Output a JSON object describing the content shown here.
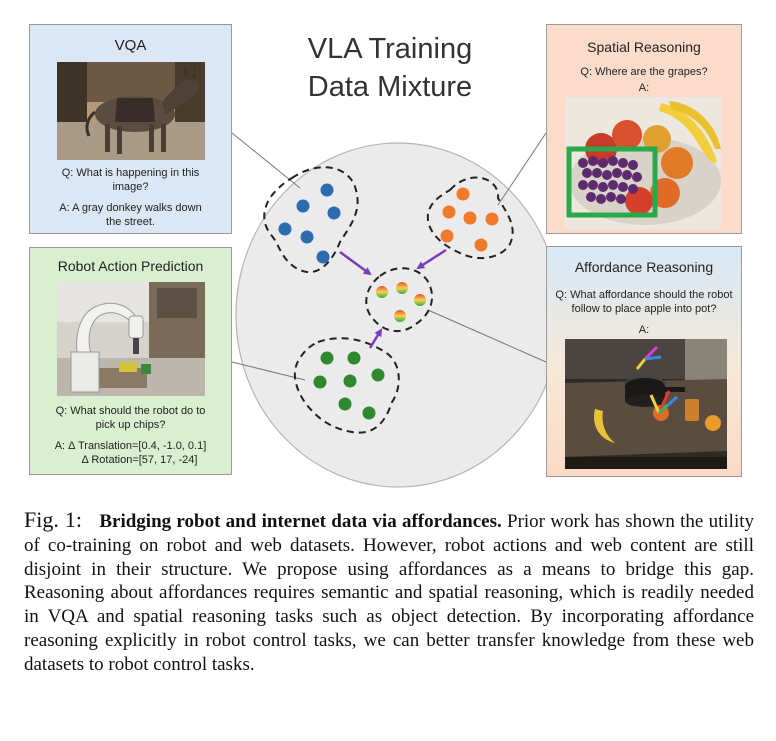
{
  "center_title_line1": "VLA Training",
  "center_title_line2": "Data Mixture",
  "panels": {
    "vqa": {
      "title": "VQA",
      "question_line1": "Q: What is happening in this",
      "question_line2": "image?",
      "answer_line1": "A: A gray donkey walks down",
      "answer_line2": "the street."
    },
    "spatial": {
      "title": "Spatial Reasoning",
      "question": "Q: Where are the grapes?",
      "answer": "A:"
    },
    "robot": {
      "title": "Robot Action Prediction",
      "question_line1": "Q: What should the robot do to",
      "question_line2": "pick up chips?",
      "answer_line1": "A: Δ Translation=[0.4, -1.0, 0.1]",
      "answer_line2": "Δ Rotation=[57, 17, -24]"
    },
    "affordance": {
      "title": "Affordance Reasoning",
      "question_line1": "Q: What affordance should the robot",
      "question_line2": "follow to place apple into pot?",
      "answer": "A:"
    }
  },
  "colors": {
    "vqa_dots": "#2d6bb0",
    "spatial_dots": "#ee7a2a",
    "robot_dots": "#2f8a2f",
    "arrow": "#7a3db8",
    "grape_box": "#2aa84a"
  },
  "caption": {
    "label": "Fig. 1:",
    "bold": "Bridging robot and internet data via affordances.",
    "text": " Prior work has shown the utility of co-training on robot and web datasets. However, robot actions and web content are still disjoint in their structure. We propose using affordances as a means to bridge this gap. Reasoning about affordances requires semantic and spatial reasoning, which is readily needed in VQA and spatial reasoning tasks such as object detection. By incorporating affordance reasoning explicitly in robot control tasks, we can better transfer knowledge from these web datasets to robot control tasks."
  }
}
